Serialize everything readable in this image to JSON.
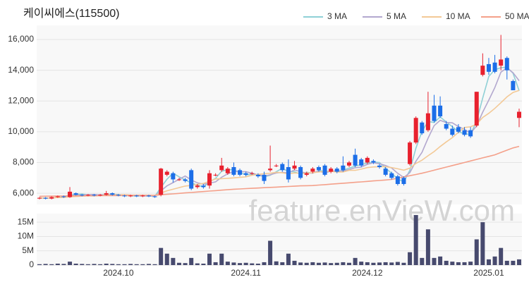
{
  "chart_data": [
    {
      "type": "candlestick",
      "title": "케이씨에스(115500)",
      "watermark": "feature.enVieW.com",
      "up_color": "#e8212e",
      "down_color": "#1c6ee8",
      "open": [
        5650,
        5700,
        5650,
        5750,
        5800,
        5750,
        6000,
        5900,
        5850,
        5900,
        5850,
        5900,
        6000,
        5900,
        5850,
        5800,
        5850,
        5800,
        5850,
        5800,
        5900,
        7200,
        7300,
        6900,
        6900,
        7500,
        6400,
        6500,
        6500,
        7200,
        7500,
        7300,
        7700,
        7500,
        7300,
        7300,
        7200,
        7200,
        7500,
        7800,
        7900,
        7700,
        7600,
        7700,
        7200,
        7400,
        7700,
        7800,
        7400,
        7600,
        7800,
        7800,
        8500,
        8200,
        8000,
        8100,
        7800,
        7600,
        7300,
        7100,
        7000,
        7900,
        9300,
        10600,
        10100,
        11700,
        11700,
        10500,
        10200,
        10300,
        10100,
        10100,
        10400,
        13700,
        14400,
        14500,
        14300,
        14800,
        13300,
        10900
      ],
      "high": [
        5750,
        5750,
        5800,
        5850,
        5850,
        6400,
        6050,
        5950,
        5950,
        5950,
        5950,
        6150,
        6050,
        5950,
        5900,
        5900,
        5900,
        5900,
        5900,
        5850,
        7650,
        7500,
        7400,
        7000,
        7000,
        7600,
        6600,
        6600,
        7500,
        7300,
        8300,
        7700,
        8000,
        7600,
        7400,
        7400,
        7300,
        7400,
        9100,
        7900,
        8000,
        8200,
        8100,
        7800,
        7400,
        7700,
        7800,
        7900,
        7700,
        7700,
        8400,
        8100,
        8900,
        8300,
        8400,
        8200,
        7900,
        7700,
        7400,
        7200,
        7100,
        9400,
        11000,
        10700,
        12600,
        12400,
        12300,
        10700,
        10400,
        10500,
        10300,
        10300,
        12600,
        15100,
        14800,
        15000,
        16300,
        14900,
        13400,
        11500
      ],
      "low": [
        5600,
        5600,
        5600,
        5700,
        5700,
        5700,
        5850,
        5800,
        5800,
        5800,
        5800,
        5850,
        5850,
        5800,
        5750,
        5750,
        5750,
        5750,
        5750,
        5700,
        5800,
        7100,
        6700,
        6800,
        6700,
        6200,
        6300,
        6300,
        6300,
        7100,
        7400,
        7200,
        7100,
        7100,
        7100,
        7200,
        7000,
        6600,
        7400,
        7700,
        7400,
        6700,
        7500,
        6900,
        7100,
        7300,
        7400,
        7100,
        7300,
        7300,
        7400,
        7700,
        7700,
        7700,
        7900,
        7900,
        7600,
        7100,
        6900,
        6500,
        6500,
        7800,
        9200,
        9800,
        10000,
        10600,
        10900,
        10100,
        9700,
        9900,
        9700,
        9600,
        10300,
        13600,
        13700,
        13800,
        14000,
        13400,
        12700,
        10300
      ],
      "close": [
        5700,
        5650,
        5750,
        5800,
        5750,
        6100,
        5900,
        5850,
        5900,
        5850,
        5900,
        6000,
        5900,
        5850,
        5800,
        5850,
        5800,
        5850,
        5800,
        5750,
        7600,
        7400,
        6900,
        6900,
        6800,
        6300,
        6500,
        6400,
        7300,
        7200,
        7800,
        7600,
        7200,
        7200,
        7200,
        7300,
        7100,
        6800,
        7600,
        7800,
        7500,
        6900,
        7800,
        7000,
        7300,
        7600,
        7500,
        7200,
        7600,
        7400,
        7500,
        8000,
        7800,
        7800,
        8300,
        8000,
        7700,
        7200,
        7000,
        6600,
        6600,
        9300,
        10900,
        9900,
        11200,
        10700,
        11000,
        10200,
        9800,
        10000,
        9800,
        9700,
        12600,
        14300,
        13900,
        13900,
        14700,
        14000,
        12700,
        11300
      ],
      "series": [
        {
          "name": "3 MA",
          "color": "#8fd0d6",
          "values": [
            5700,
            5675,
            5700,
            5733,
            5767,
            5883,
            5917,
            5950,
            5883,
            5867,
            5883,
            5917,
            5933,
            5917,
            5850,
            5833,
            5817,
            5833,
            5817,
            5800,
            6383,
            6917,
            7300,
            7067,
            6867,
            6667,
            6533,
            6400,
            6733,
            6967,
            7433,
            7533,
            7533,
            7333,
            7200,
            7233,
            7200,
            7067,
            7167,
            7400,
            7633,
            7400,
            7400,
            7233,
            7367,
            7300,
            7467,
            7433,
            7433,
            7400,
            7500,
            7633,
            7767,
            7867,
            7967,
            8033,
            8000,
            7633,
            7300,
            6933,
            6733,
            7500,
            8933,
            10033,
            10667,
            10600,
            10967,
            10633,
            10333,
            10000,
            9867,
            9833,
            10700,
            12200,
            13600,
            14033,
            14167,
            14200,
            13800,
            12667
          ]
        },
        {
          "name": "5 MA",
          "color": "#b3a8cf",
          "values": [
            5700,
            5675,
            5700,
            5725,
            5730,
            5810,
            5860,
            5880,
            5900,
            5920,
            5880,
            5900,
            5910,
            5900,
            5890,
            5880,
            5840,
            5830,
            5820,
            5810,
            6160,
            6480,
            6690,
            6910,
            7120,
            6860,
            6680,
            6580,
            6660,
            6740,
            7040,
            7260,
            7420,
            7400,
            7400,
            7300,
            7200,
            7120,
            7200,
            7320,
            7360,
            7320,
            7520,
            7400,
            7300,
            7320,
            7440,
            7320,
            7440,
            7460,
            7440,
            7540,
            7660,
            7700,
            7880,
            7980,
            7920,
            7800,
            7640,
            7300,
            7020,
            7340,
            8080,
            8660,
            9580,
            10400,
            10740,
            10600,
            10580,
            10340,
            10160,
            9900,
            10380,
            11280,
            12060,
            12880,
            13880,
            14160,
            13840,
            13320
          ]
        },
        {
          "name": "10 MA",
          "color": "#f3c996",
          "values": [
            5700,
            5680,
            5700,
            5720,
            5730,
            5770,
            5790,
            5810,
            5830,
            5825,
            5845,
            5880,
            5895,
            5900,
            5905,
            5880,
            5870,
            5870,
            5860,
            5850,
            6020,
            6160,
            6260,
            6365,
            6465,
            6510,
            6580,
            6635,
            6785,
            6930,
            6950,
            6970,
            7000,
            7030,
            7070,
            7170,
            7230,
            7270,
            7300,
            7360,
            7330,
            7260,
            7320,
            7300,
            7310,
            7340,
            7380,
            7420,
            7420,
            7380,
            7380,
            7490,
            7490,
            7570,
            7670,
            7710,
            7730,
            7730,
            7670,
            7590,
            7500,
            7630,
            7940,
            8150,
            8440,
            8710,
            9040,
            9340,
            9620,
            9960,
            10280,
            10320,
            10490,
            10930,
            11200,
            11520,
            11890,
            12270,
            12560,
            12690
          ]
        },
        {
          "name": "50 MA",
          "color": "#f4a08a",
          "values": [
            5800,
            5805,
            5810,
            5815,
            5820,
            5825,
            5830,
            5835,
            5840,
            5840,
            5845,
            5845,
            5850,
            5850,
            5855,
            5855,
            5860,
            5860,
            5865,
            5865,
            5900,
            5930,
            5960,
            5990,
            6020,
            6050,
            6080,
            6110,
            6140,
            6170,
            6200,
            6230,
            6260,
            6280,
            6300,
            6320,
            6340,
            6360,
            6380,
            6400,
            6420,
            6440,
            6460,
            6480,
            6490,
            6500,
            6530,
            6560,
            6590,
            6620,
            6650,
            6680,
            6710,
            6740,
            6770,
            6800,
            6830,
            6860,
            6900,
            6980,
            7060,
            7140,
            7220,
            7300,
            7400,
            7500,
            7600,
            7700,
            7800,
            7900,
            8000,
            8100,
            8200,
            8300,
            8400,
            8500,
            8650,
            8800,
            8950,
            9050
          ]
        }
      ],
      "ylim": [
        5270,
        16920
      ],
      "yticks": [
        {
          "value": 6000,
          "label": "6,000"
        },
        {
          "value": 8000,
          "label": "8,000"
        },
        {
          "value": 10000,
          "label": "10,000"
        },
        {
          "value": 12000,
          "label": "12,000"
        },
        {
          "value": 14000,
          "label": "14,000"
        },
        {
          "value": 16000,
          "label": "16,000"
        }
      ],
      "grid": true,
      "legend": "top-right"
    },
    {
      "type": "bar",
      "color": "#474a6e",
      "categories": [
        null,
        null,
        null,
        null,
        null,
        null,
        null,
        null,
        null,
        null,
        null,
        null,
        null,
        "2024.10",
        null,
        null,
        null,
        null,
        null,
        null,
        null,
        null,
        null,
        null,
        null,
        null,
        null,
        null,
        null,
        null,
        null,
        null,
        null,
        null,
        "2024.11",
        null,
        null,
        null,
        null,
        null,
        null,
        null,
        null,
        null,
        null,
        null,
        null,
        null,
        null,
        null,
        null,
        null,
        null,
        null,
        "2024.12",
        null,
        null,
        null,
        null,
        null,
        null,
        null,
        null,
        null,
        null,
        null,
        null,
        null,
        null,
        null,
        null,
        null,
        null,
        null,
        "2025.01",
        null,
        null,
        null,
        null,
        null
      ],
      "values": [
        300000,
        400000,
        300000,
        500000,
        400000,
        1200000,
        500000,
        400000,
        300000,
        400000,
        300000,
        500000,
        400000,
        300000,
        300000,
        400000,
        300000,
        300000,
        400000,
        300000,
        6000000,
        4000000,
        2500000,
        800000,
        700000,
        2500000,
        600000,
        500000,
        4000000,
        1000000,
        4000000,
        1200000,
        900000,
        700000,
        800000,
        600000,
        500000,
        1000000,
        8500000,
        1300000,
        1000000,
        4000000,
        1500000,
        900000,
        800000,
        1000000,
        800000,
        900000,
        700000,
        800000,
        1000000,
        800000,
        2500000,
        1200000,
        1000000,
        800000,
        900000,
        1000000,
        900000,
        1100000,
        800000,
        4500000,
        17500000,
        2500000,
        12500000,
        2500000,
        3000000,
        1500000,
        1200000,
        1000000,
        1000000,
        1200000,
        9000000,
        15000000,
        2000000,
        3000000,
        6000000,
        1500000,
        1500000,
        2000000
      ],
      "ylim": [
        0,
        18000000
      ],
      "yticks": [
        0,
        {
          "value": 5000000,
          "label": "5M"
        },
        {
          "value": 10000000,
          "label": "10M"
        },
        {
          "value": 15000000,
          "label": "15M"
        }
      ],
      "grid": true
    }
  ]
}
